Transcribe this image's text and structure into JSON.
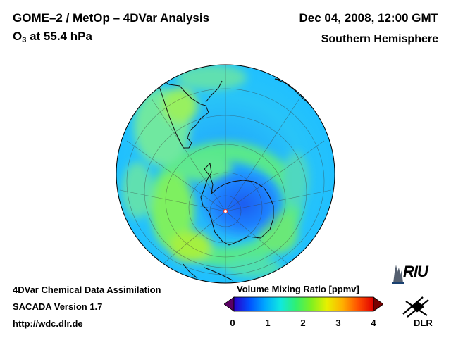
{
  "header": {
    "title": "GOME–2 / MetOp – 4DVar Analysis",
    "subtitle_prefix": "O",
    "subtitle_sub": "3",
    "subtitle_rest": " at 55.4 hPa",
    "date": "Dec 04, 2008, 12:00 GMT",
    "region": "Southern Hemisphere"
  },
  "footer": {
    "line1": "4DVar Chemical Data Assimilation",
    "line2": "SACADA Version 1.7",
    "line3": "http://wdc.dlr.de"
  },
  "colorbar": {
    "title": "Volume Mixing Ratio [ppmv]",
    "ticks": [
      "0",
      "1",
      "2",
      "3",
      "4"
    ],
    "colors": [
      "#5a0064",
      "#2a00c8",
      "#0050ff",
      "#00a8ff",
      "#10e8e0",
      "#30f070",
      "#80f020",
      "#e8f000",
      "#ffb000",
      "#ff5000",
      "#e00000",
      "#780000"
    ]
  },
  "logos": {
    "riu": "RIU",
    "dlr": "DLR"
  },
  "map": {
    "projection": "polar orthographic, south pole",
    "ocean_color": "#30c8ff",
    "vortex_color": "#1a6cff"
  }
}
